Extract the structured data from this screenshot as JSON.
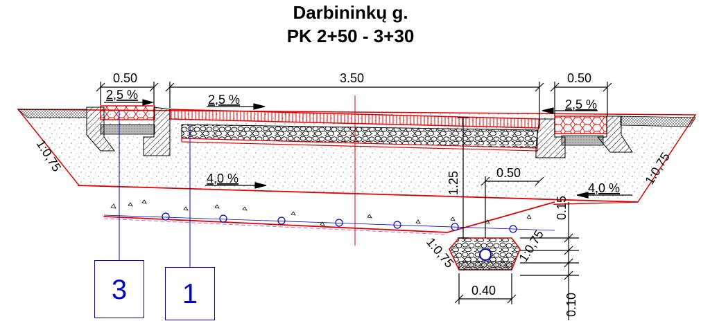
{
  "title": {
    "street": "Darbininkų g.",
    "range": "PK 2+50 - 3+30"
  },
  "dimensions": {
    "curb_width_left": "0.50",
    "carriageway_width": "3.50",
    "curb_width_right": "0.50",
    "slope_left_top": "2,5 %",
    "slope_carriageway": "2,5 %",
    "slope_right_top": "2,5 %",
    "slope_subbase": "4,0 %",
    "slope_subbase_right": "4,0 %",
    "depth_total": "1.25",
    "offset_drain": "0.50",
    "embank_left": "1:0,75",
    "embank_right": "1:0,75",
    "drain_side_left": "1:0,75",
    "drain_side_right": "1:0,75",
    "drain_width": "0.40",
    "drain_depth_a": "0.15",
    "drain_depth_b": "0.10"
  },
  "tags": {
    "tag_3": "3",
    "tag_1": "1"
  },
  "colors": {
    "structure_line": "#e00000",
    "annotation_line": "#0000cc",
    "ink": "#000000"
  }
}
